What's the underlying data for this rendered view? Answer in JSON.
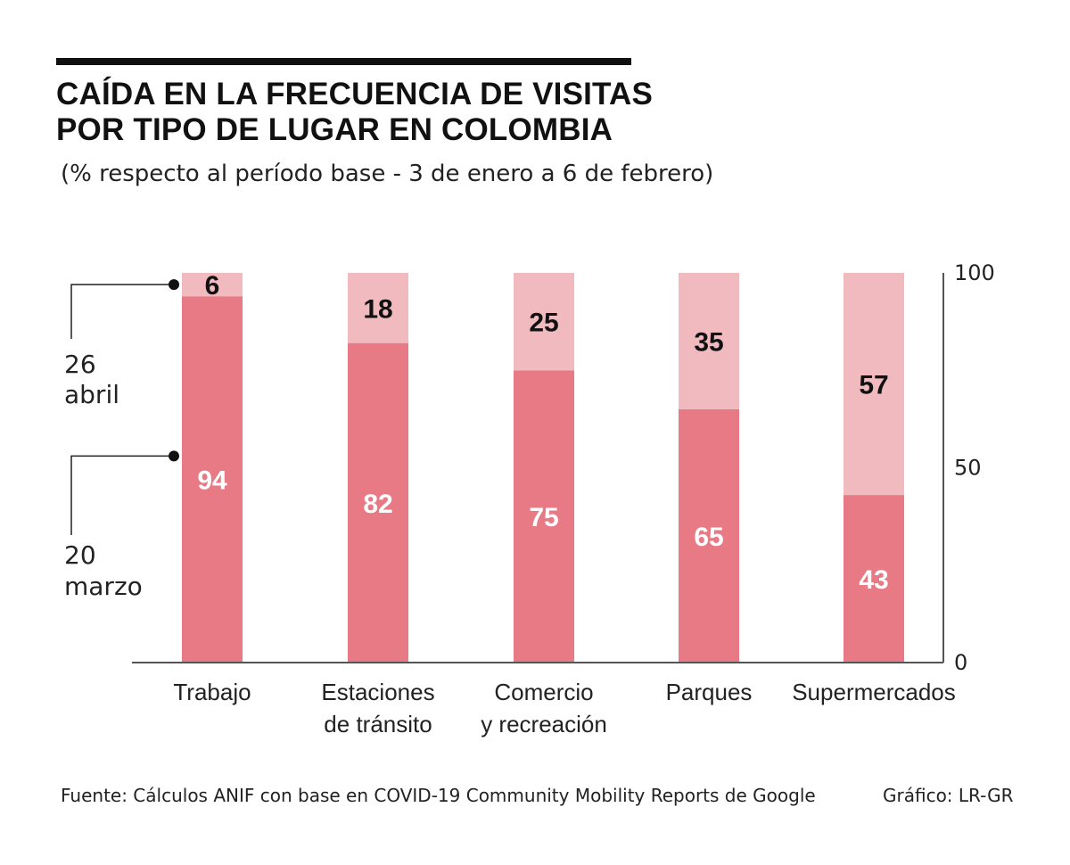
{
  "title_line1": "CAÍDA EN LA FRECUENCIA DE VISITAS",
  "title_line2": "POR TIPO DE LUGAR EN COLOMBIA",
  "subtitle": "(% respecto al período base - 3 de enero a 6 de febrero)",
  "source": "Fuente: Cálculos ANIF con base en COVID-19 Community Mobility Reports de Google",
  "credit": "Gráfico: LR-GR",
  "colors": {
    "march": "#e87a86",
    "april": "#f0babf",
    "axis": "#555555",
    "text": "#222222"
  },
  "legend": [
    {
      "date_day": "26",
      "date_month": "abril"
    },
    {
      "date_day": "20",
      "date_month": "marzo"
    }
  ],
  "chart_data": {
    "type": "bar",
    "stacked": true,
    "categories": [
      [
        "Trabajo"
      ],
      [
        "Estaciones",
        "de tránsito"
      ],
      [
        "Comercio",
        "y recreación"
      ],
      [
        "Parques"
      ],
      [
        "Supermercados"
      ]
    ],
    "series": [
      {
        "name": "20 marzo",
        "values": [
          94,
          82,
          75,
          65,
          43
        ]
      },
      {
        "name": "26 abril",
        "values": [
          6,
          18,
          25,
          35,
          57
        ]
      }
    ],
    "ylim": [
      0,
      100
    ],
    "yticks": [
      "0",
      "50",
      "100"
    ],
    "ytick_values": [
      0,
      50,
      100
    ],
    "xlabel": "",
    "ylabel": ""
  }
}
